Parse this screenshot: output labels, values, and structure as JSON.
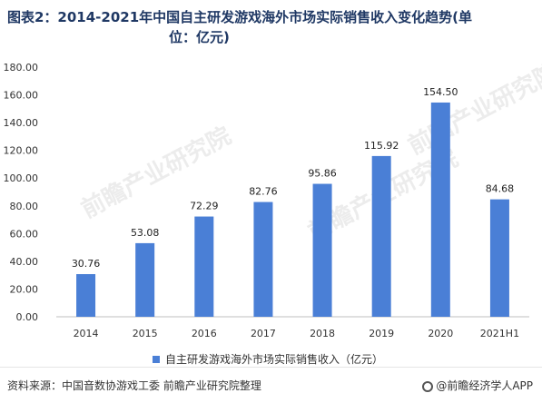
{
  "title_line1": "图表2：2014-2021年中国自主研发游戏海外市场实际销售收入变化趋势(单",
  "title_line2": "位：亿元)",
  "source": "资料来源：中国音数协游戏工委 前瞻产业研究院整理",
  "brand": "@前瞻经济学人APP",
  "watermark": "前瞻产业研究院",
  "colors": {
    "bar": "#4a7fd6",
    "axis": "#bfbfbf"
  },
  "chart_data": {
    "type": "bar",
    "categories": [
      "2014",
      "2015",
      "2016",
      "2017",
      "2018",
      "2019",
      "2020",
      "2021H1"
    ],
    "series": [
      {
        "name": "自主研发游戏海外市场实际销售收入（亿元）",
        "values": [
          30.76,
          53.08,
          72.29,
          82.76,
          95.86,
          115.92,
          154.5,
          84.68
        ]
      }
    ],
    "ylim": [
      0,
      180
    ],
    "yticks": [
      "0.00",
      "20.00",
      "40.00",
      "60.00",
      "80.00",
      "100.00",
      "120.00",
      "140.00",
      "160.00",
      "180.00"
    ],
    "value_labels": [
      "30.76",
      "53.08",
      "72.29",
      "82.76",
      "95.86",
      "115.92",
      "154.50",
      "84.68"
    ],
    "grid": false,
    "legend_position": "bottom"
  }
}
